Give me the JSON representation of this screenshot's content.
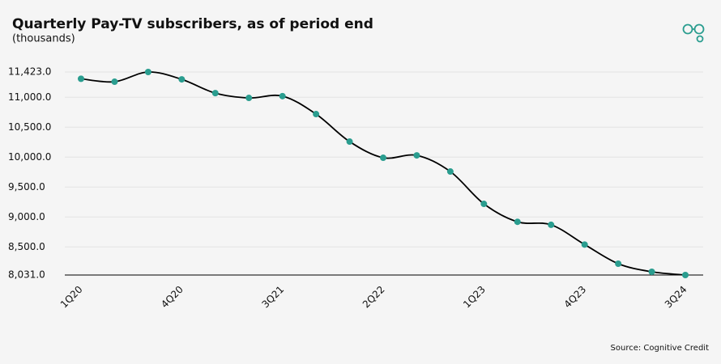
{
  "chart_data": {
    "type": "line",
    "title": "Quarterly Pay-TV subscribers, as of period end",
    "subtitle": "(thousands)",
    "source": "Source: Cognitive Credit",
    "categories": [
      "1Q20",
      null,
      null,
      "4Q20",
      null,
      null,
      "3Q21",
      null,
      null,
      "2Q22",
      null,
      null,
      "1Q23",
      null,
      null,
      "4Q23",
      null,
      null,
      "3Q24"
    ],
    "series": [
      {
        "color": "#2a9d8f",
        "line_color": "#000000",
        "values": [
          11310,
          11260,
          11423,
          11300,
          11070,
          10990,
          11020,
          10720,
          10260,
          9990,
          10030,
          9760,
          9220,
          8920,
          8870,
          8540,
          8220,
          8085,
          8031
        ]
      }
    ],
    "ylim": [
      8031,
      11423
    ],
    "yticks": [
      {
        "value": 8031,
        "label": "8,031.0"
      },
      {
        "value": 8500,
        "label": "8,500.0"
      },
      {
        "value": 9000,
        "label": "9,000.0"
      },
      {
        "value": 9500,
        "label": "9,500.0"
      },
      {
        "value": 10000,
        "label": "10,000.0"
      },
      {
        "value": 10500,
        "label": "10,500.0"
      },
      {
        "value": 11000,
        "label": "11,000.0"
      },
      {
        "value": 11423,
        "label": "11,423.0"
      }
    ],
    "grid": true
  }
}
